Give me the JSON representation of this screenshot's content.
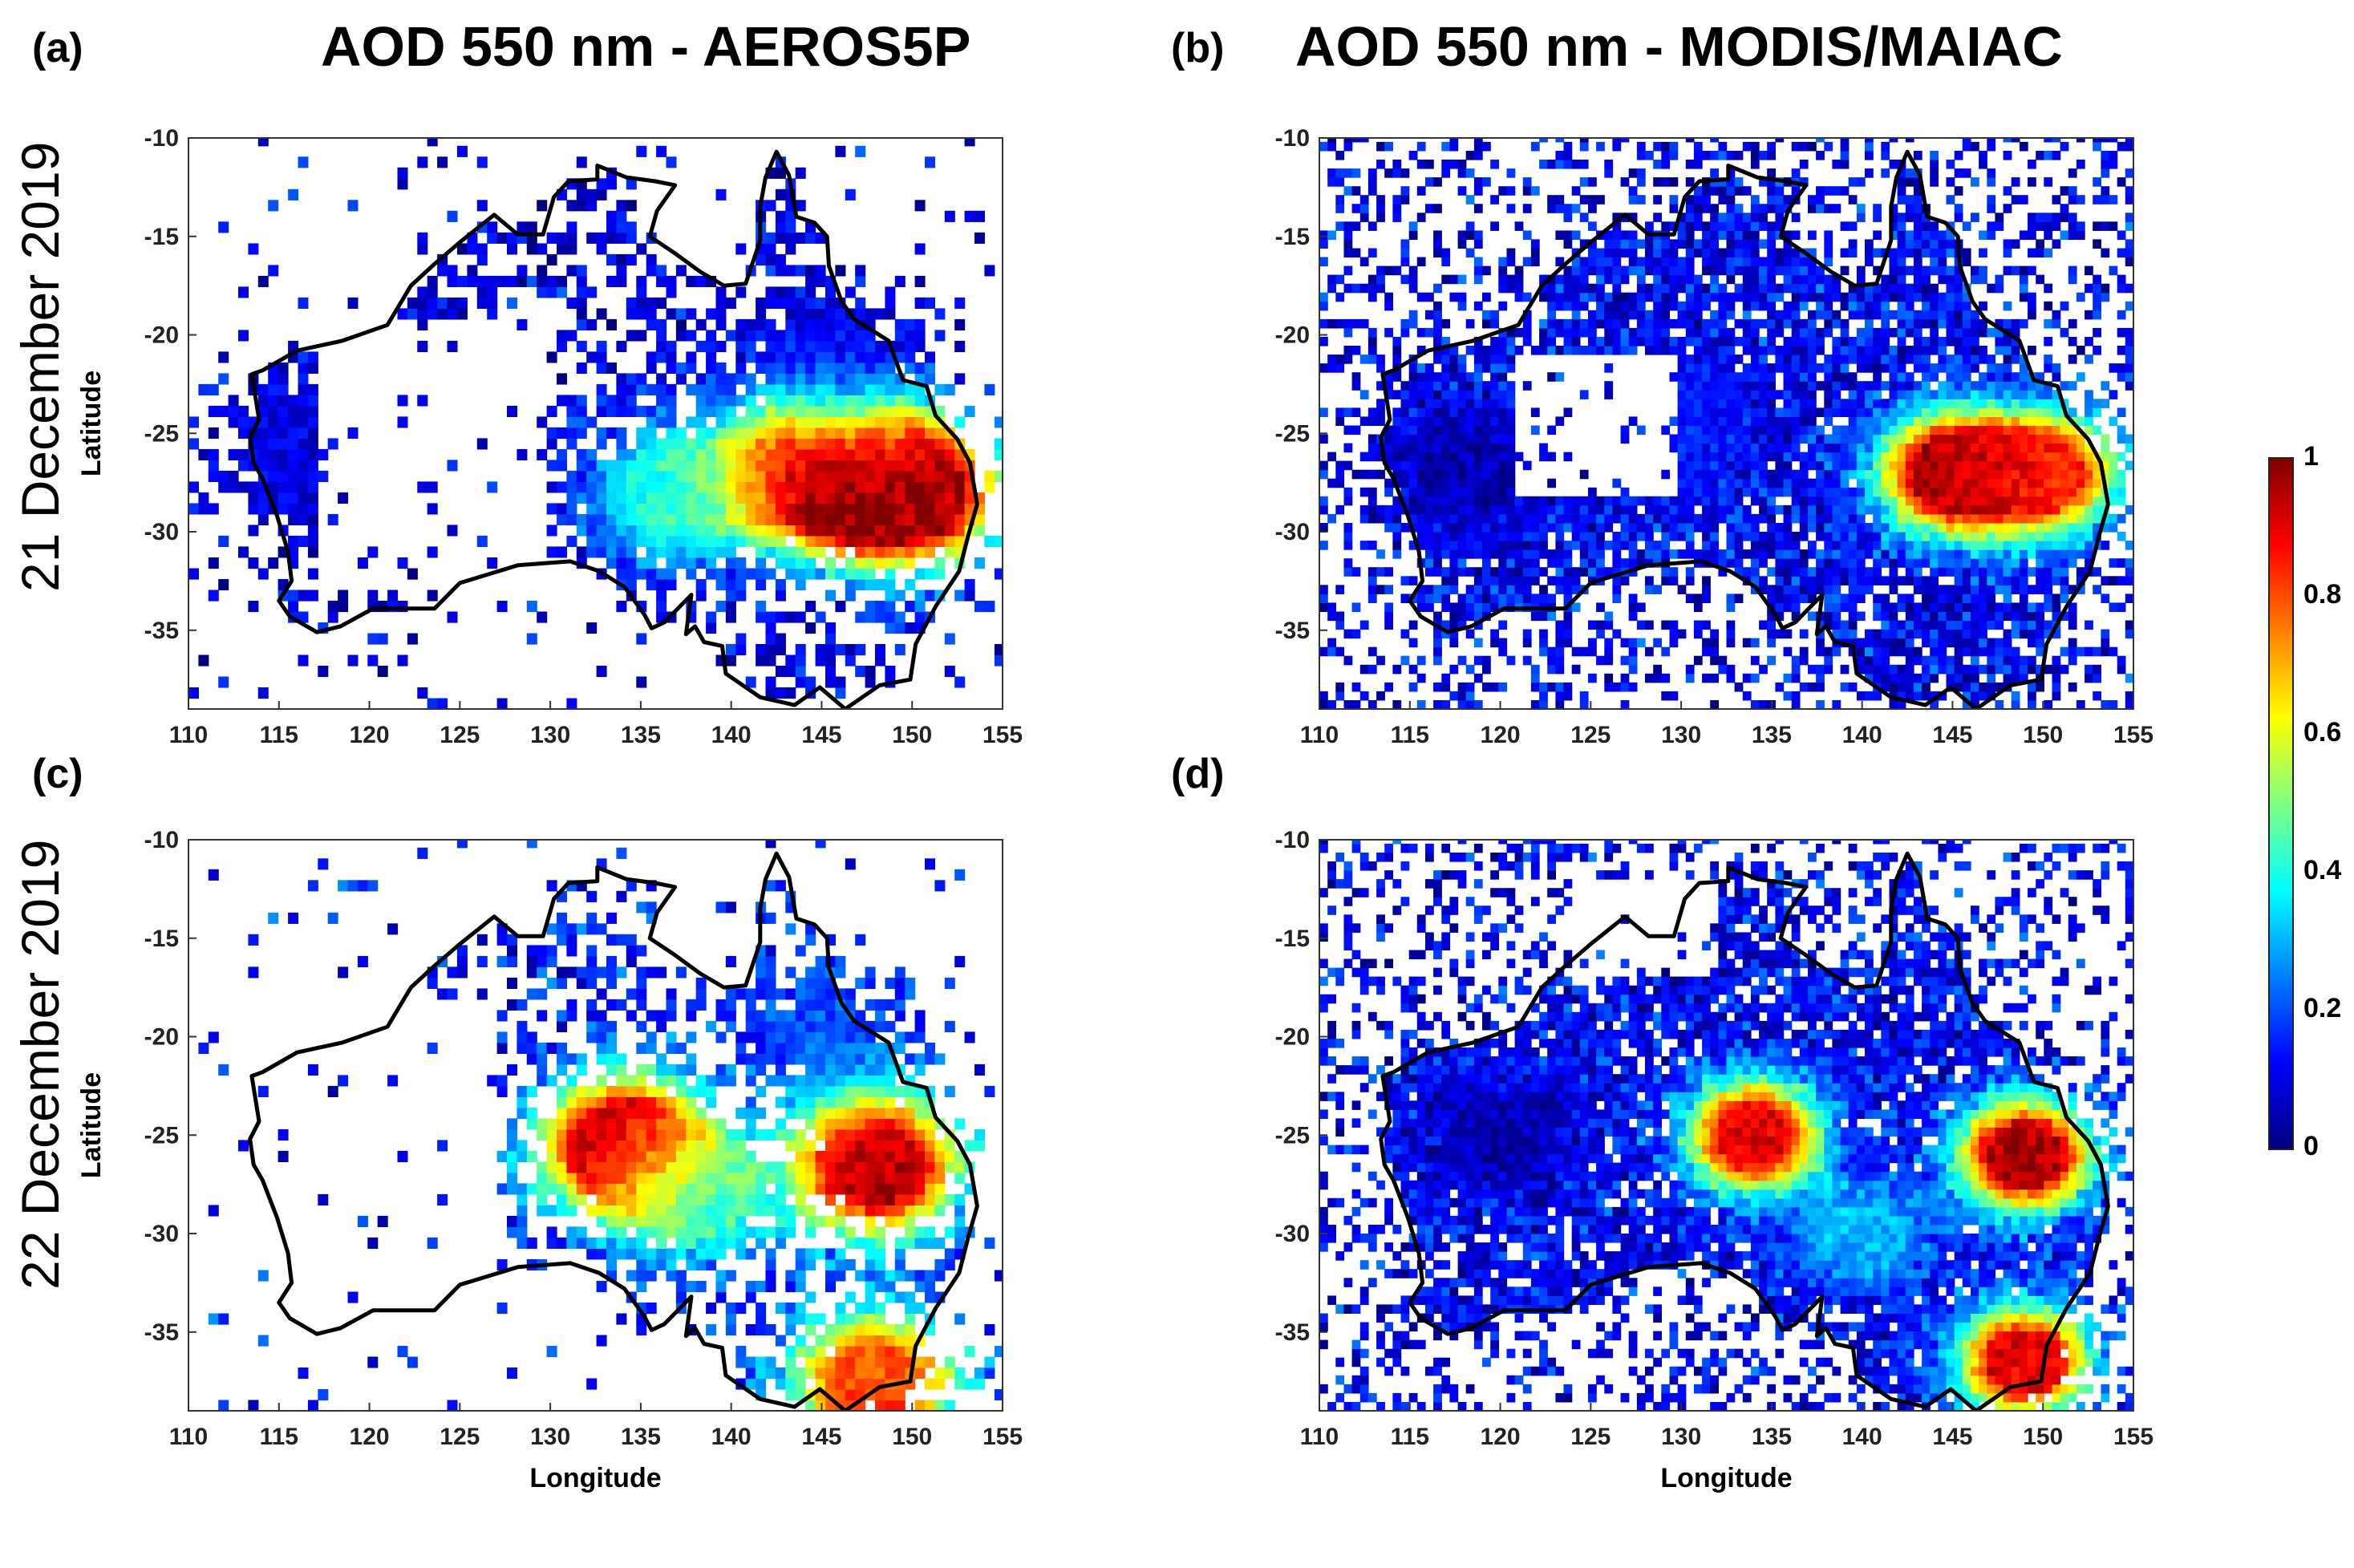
{
  "figure": {
    "columns": [
      {
        "label": "(a)",
        "title": "AOD 550 nm - AEROS5P"
      },
      {
        "label": "(b)",
        "title": "AOD 550 nm - MODIS/MAIAC"
      }
    ],
    "row_panel_labels": [
      "(c)",
      "(d)"
    ],
    "rows": [
      "21 December 2019",
      "22 December 2019"
    ],
    "xlabel": "Longitude",
    "ylabel": "Latitude",
    "x_ticks": [
      "110",
      "115",
      "120",
      "125",
      "130",
      "135",
      "140",
      "145",
      "150",
      "155"
    ],
    "y_ticks": [
      "-10",
      "-15",
      "-20",
      "-25",
      "-30",
      "-35"
    ],
    "colorbar": {
      "ticks": [
        "1",
        "0.8",
        "0.6",
        "0.4",
        "0.2",
        "0"
      ],
      "colors": [
        "#00007f",
        "#0000ff",
        "#0080ff",
        "#00ffff",
        "#80ff80",
        "#ffff00",
        "#ff8000",
        "#ff0000",
        "#7f0000"
      ]
    }
  },
  "chart_data": [
    {
      "type": "heatmap",
      "panel": "(a)",
      "title": "AOD 550 nm - AEROS5P",
      "date": "21 December 2019",
      "xlabel": "",
      "ylabel": "Latitude",
      "xlim": [
        110,
        155
      ],
      "ylim": [
        -39,
        -10
      ],
      "clim": [
        0,
        1
      ],
      "hotspots": [
        {
          "lon": 145,
          "lat": -27,
          "aod": 1.0
        },
        {
          "lon": 150,
          "lat": -28,
          "aod": 0.95
        },
        {
          "lon": 146,
          "lat": -21.5,
          "aod": 0.1
        },
        {
          "lon": 137,
          "lat": -28,
          "aod": 0.4
        },
        {
          "lon": 116,
          "lat": -26,
          "aod": 0.1
        }
      ]
    },
    {
      "type": "heatmap",
      "panel": "(b)",
      "title": "AOD 550 nm - MODIS/MAIAC",
      "date": "21 December 2019",
      "xlabel": "",
      "ylabel": "",
      "xlim": [
        110,
        155
      ],
      "ylim": [
        -39,
        -10
      ],
      "clim": [
        0,
        1
      ],
      "hotspots": [
        {
          "lon": 145,
          "lat": -27,
          "aod": 0.95
        },
        {
          "lon": 150,
          "lat": -27,
          "aod": 0.85
        },
        {
          "lon": 130,
          "lat": -25,
          "aod": 0.15
        },
        {
          "lon": 118,
          "lat": -27,
          "aod": 0.05
        }
      ]
    },
    {
      "type": "heatmap",
      "panel": "(c)",
      "title": "",
      "date": "22 December 2019",
      "xlabel": "Longitude",
      "ylabel": "Latitude",
      "xlim": [
        110,
        155
      ],
      "ylim": [
        -39,
        -10
      ],
      "clim": [
        0,
        1
      ],
      "hotspots": [
        {
          "lon": 134,
          "lat": -25.5,
          "aod": 0.95
        },
        {
          "lon": 148,
          "lat": -26.5,
          "aod": 0.95
        },
        {
          "lon": 138,
          "lat": -28,
          "aod": 0.4
        },
        {
          "lon": 146,
          "lat": -20,
          "aod": 0.2
        },
        {
          "lon": 148,
          "lat": -37.5,
          "aod": 0.8
        }
      ]
    },
    {
      "type": "heatmap",
      "panel": "(d)",
      "title": "",
      "date": "22 December 2019",
      "xlabel": "Longitude",
      "ylabel": "",
      "xlim": [
        110,
        155
      ],
      "ylim": [
        -39,
        -10
      ],
      "clim": [
        0,
        1
      ],
      "hotspots": [
        {
          "lon": 134,
          "lat": -25,
          "aod": 0.9
        },
        {
          "lon": 149,
          "lat": -26,
          "aod": 0.95
        },
        {
          "lon": 149,
          "lat": -36.5,
          "aod": 0.9
        },
        {
          "lon": 120,
          "lat": -25,
          "aod": 0.05
        },
        {
          "lon": 140,
          "lat": -30,
          "aod": 0.3
        }
      ]
    }
  ]
}
